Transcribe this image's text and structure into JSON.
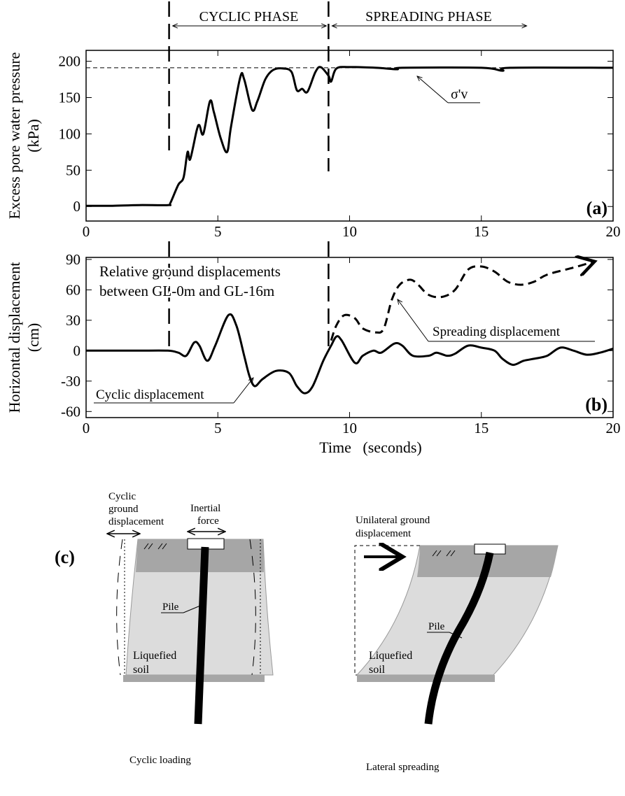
{
  "chart_data": [
    {
      "type": "line",
      "y_label": [
        "Excess pore water pressure",
        "(kPa)"
      ],
      "xlim": [
        0,
        20
      ],
      "xticks": [
        0,
        5,
        10,
        15,
        20
      ],
      "ylim": [
        -20,
        215
      ],
      "yticks": [
        0,
        50,
        100,
        150,
        200
      ],
      "color": "#000000",
      "x": [
        0,
        1,
        2,
        3.1,
        3.2,
        3.5,
        3.7,
        3.85,
        3.95,
        4.2,
        4.3,
        4.45,
        4.7,
        4.85,
        5.1,
        5.35,
        5.5,
        5.85,
        6.0,
        6.3,
        6.5,
        6.8,
        7.1,
        7.5,
        7.8,
        8.0,
        8.2,
        8.4,
        8.7,
        8.9,
        9.2,
        9.3,
        9.5,
        10,
        11,
        11.8,
        12,
        15,
        15.8,
        16.1,
        20
      ],
      "values": [
        1,
        1,
        2,
        2,
        5,
        30,
        40,
        75,
        65,
        105,
        112,
        100,
        145,
        130,
        95,
        75,
        110,
        178,
        175,
        133,
        145,
        175,
        188,
        190,
        185,
        160,
        162,
        158,
        185,
        192,
        180,
        172,
        190,
        192,
        191,
        189,
        191,
        191,
        187,
        191,
        191
      ],
      "reference_line": {
        "value": 191,
        "label": "σ'v"
      },
      "phases": [
        {
          "label": "CYCLIC PHASE",
          "start": 3.15,
          "end": 9.2
        },
        {
          "label": "SPREADING PHASE",
          "start": 9.2,
          "end": 16.8
        }
      ],
      "panel_label": "(a)"
    },
    {
      "type": "line",
      "x_label": "Time   (seconds)",
      "y_label": [
        "Horizontal displacement",
        "(cm)"
      ],
      "xlim": [
        0,
        20
      ],
      "xticks": [
        0,
        5,
        10,
        15,
        20
      ],
      "ylim": [
        -66,
        92
      ],
      "yticks": [
        -60,
        -30,
        0,
        30,
        60,
        90
      ],
      "annotation": [
        "Relative ground displacements",
        "between GL-0m and GL-16m"
      ],
      "series": [
        {
          "name": "Cyclic displacement",
          "color": "#000000",
          "dashed": false,
          "x": [
            0,
            1,
            2,
            3.1,
            3.5,
            3.8,
            4.1,
            4.3,
            4.6,
            4.9,
            5.4,
            5.7,
            6.0,
            6.2,
            6.4,
            6.7,
            7.2,
            7.7,
            8.0,
            8.3,
            8.6,
            9.0,
            9.3,
            9.5,
            9.7,
            10.2,
            10.5,
            10.9,
            11.2,
            11.7,
            12.0,
            12.4,
            13.0,
            13.3,
            13.7,
            14.0,
            14.5,
            15.0,
            15.5,
            15.8,
            16.2,
            16.6,
            17.0,
            17.5,
            18.0,
            18.5,
            19.0,
            19.5,
            20
          ],
          "values": [
            0,
            0,
            0,
            0,
            -2,
            -5,
            8,
            5,
            -10,
            5,
            35,
            25,
            -5,
            -25,
            -35,
            -28,
            -20,
            -22,
            -35,
            -42,
            -35,
            -10,
            5,
            14,
            10,
            -12,
            -5,
            0,
            -2,
            7,
            5,
            -5,
            -5,
            -2,
            -5,
            -3,
            5,
            3,
            0,
            -8,
            -14,
            -10,
            -8,
            -5,
            3,
            0,
            -4,
            -2,
            2
          ]
        },
        {
          "name": "Spreading displacement",
          "color": "#000000",
          "dashed": true,
          "x": [
            9.3,
            9.5,
            9.8,
            10.2,
            10.5,
            11.0,
            11.3,
            11.6,
            11.9,
            12.3,
            12.6,
            13.0,
            13.5,
            14.0,
            14.5,
            15.0,
            15.5,
            16.0,
            16.5,
            17.0,
            17.5,
            18.5,
            19.3
          ],
          "values": [
            10,
            25,
            35,
            32,
            22,
            18,
            22,
            50,
            65,
            70,
            65,
            55,
            53,
            60,
            80,
            83,
            78,
            68,
            65,
            68,
            75,
            82,
            88
          ]
        }
      ],
      "panel_label": "(b)"
    }
  ],
  "diagram": {
    "label": "(c)",
    "left": {
      "ground_displacement": [
        "Cyclic",
        "ground",
        "displacement"
      ],
      "inertial_force": [
        "Inertial",
        "force"
      ],
      "pile": "Pile",
      "soil": [
        "Liquefied",
        "soil"
      ],
      "caption": "Cyclic loading"
    },
    "right": {
      "ground_displacement": [
        "Unilateral ground",
        "displacement"
      ],
      "pile": "Pile",
      "soil": [
        "Liquefied",
        "soil"
      ],
      "caption": "Lateral spreading"
    }
  }
}
